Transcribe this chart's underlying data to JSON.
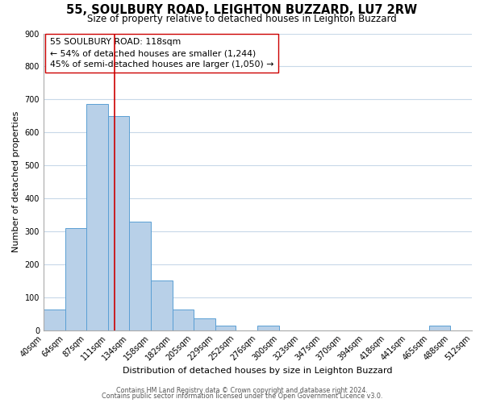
{
  "title": "55, SOULBURY ROAD, LEIGHTON BUZZARD, LU7 2RW",
  "subtitle": "Size of property relative to detached houses in Leighton Buzzard",
  "xlabel": "Distribution of detached houses by size in Leighton Buzzard",
  "ylabel": "Number of detached properties",
  "bar_edges": [
    40,
    64,
    87,
    111,
    134,
    158,
    182,
    205,
    229,
    252,
    276,
    300,
    323,
    347,
    370,
    394,
    418,
    441,
    465,
    488,
    512
  ],
  "bar_heights": [
    63,
    310,
    685,
    650,
    330,
    150,
    63,
    35,
    13,
    0,
    13,
    0,
    0,
    0,
    0,
    0,
    0,
    0,
    13,
    0,
    0
  ],
  "bar_color": "#b8d0e8",
  "bar_edgecolor": "#5a9fd4",
  "property_line_x": 118,
  "property_line_color": "#cc0000",
  "annotation_line1": "55 SOULBURY ROAD: 118sqm",
  "annotation_line2": "← 54% of detached houses are smaller (1,244)",
  "annotation_line3": "45% of semi-detached houses are larger (1,050) →",
  "ylim": [
    0,
    900
  ],
  "yticks": [
    0,
    100,
    200,
    300,
    400,
    500,
    600,
    700,
    800,
    900
  ],
  "background_color": "#ffffff",
  "footer_line1": "Contains HM Land Registry data © Crown copyright and database right 2024.",
  "footer_line2": "Contains public sector information licensed under the Open Government Licence v3.0.",
  "grid_color": "#c8d8e8",
  "title_fontsize": 10.5,
  "subtitle_fontsize": 8.5,
  "annotation_fontsize": 7.8,
  "axis_label_fontsize": 8,
  "tick_fontsize": 7,
  "footer_fontsize": 5.8
}
